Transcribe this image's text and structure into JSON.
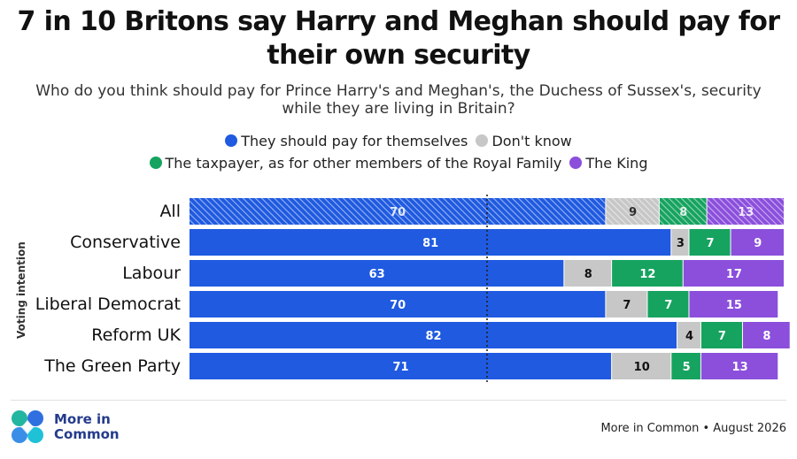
{
  "title": "7 in 10 Britons say Harry and Meghan should pay for their own security",
  "subtitle": "Who do you think should pay for Prince Harry's and Meghan's, the Duchess of Sussex's, security while they are living in Britain?",
  "colors": {
    "pay_themselves": "#1f5ae0",
    "dont_know": "#c7c7c7",
    "taxpayer": "#16a35f",
    "king": "#8b4fdc"
  },
  "footer": {
    "brand_line1": "More in",
    "brand_line2": "Common",
    "source": "More in Common • August 2026"
  },
  "chart_data": {
    "type": "bar",
    "orientation": "horizontal",
    "stacked": true,
    "normalized_to": 100,
    "title": "7 in 10 Britons say Harry and Meghan should pay for their own security",
    "ylabel": "Voting intention",
    "xlim": [
      0,
      100
    ],
    "reference_line": {
      "x": 50,
      "style": "dotted"
    },
    "highlight_category": "All",
    "legend_position": "top",
    "categories": [
      "All",
      "Conservative",
      "Labour",
      "Liberal Democrat",
      "Reform UK",
      "The Green Party"
    ],
    "series": [
      {
        "name": "They should pay for themselves",
        "color_key": "pay_themselves",
        "values": [
          70,
          81,
          63,
          70,
          82,
          71
        ]
      },
      {
        "name": "Don't know",
        "color_key": "dont_know",
        "values": [
          9,
          3,
          8,
          7,
          4,
          10
        ]
      },
      {
        "name": "The taxpayer, as for other members of the Royal Family",
        "color_key": "taxpayer",
        "values": [
          8,
          7,
          12,
          7,
          7,
          5
        ]
      },
      {
        "name": "The King",
        "color_key": "king",
        "values": [
          13,
          9,
          17,
          15,
          8,
          13
        ]
      }
    ]
  }
}
